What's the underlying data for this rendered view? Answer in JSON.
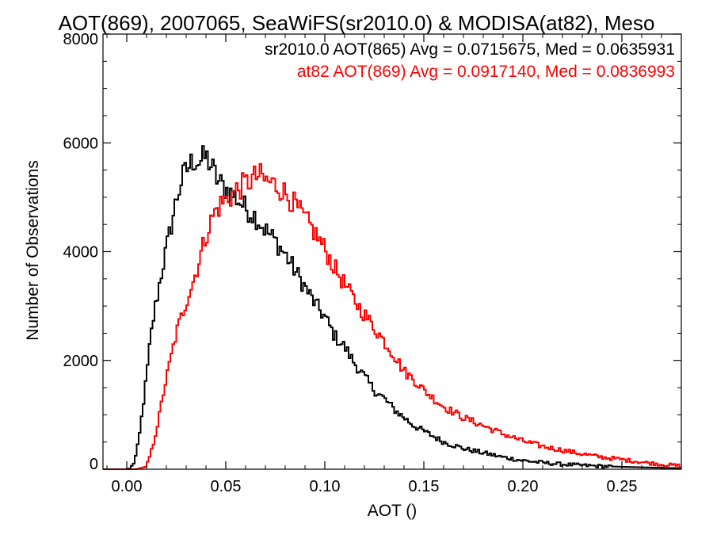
{
  "chart_data": {
    "type": "line",
    "title": "AOT(869), 2007065, SeaWiFS(sr2010.0) & MODISA(at82), Meso",
    "xlabel": "AOT ()",
    "ylabel": "Number of Observations",
    "xlim": [
      -0.012,
      0.28
    ],
    "ylim": [
      0,
      8000
    ],
    "xticks": [
      0.0,
      0.05,
      0.1,
      0.15,
      0.2,
      0.25
    ],
    "xtick_labels": [
      "0.00",
      "0.05",
      "0.10",
      "0.15",
      "0.20",
      "0.25"
    ],
    "yticks": [
      0,
      2000,
      4000,
      6000,
      8000
    ],
    "ytick_labels": [
      "0",
      "2000",
      "4000",
      "6000",
      "8000"
    ],
    "grid": false,
    "step": true,
    "series": [
      {
        "color": "#000000",
        "label": "sr2010.0 AOT(865) Avg = 0.0715675, Med = 0.0635931",
        "x": [
          -0.012,
          0.0,
          0.002,
          0.004,
          0.006,
          0.008,
          0.01,
          0.012,
          0.014,
          0.016,
          0.018,
          0.02,
          0.022,
          0.025,
          0.028,
          0.031,
          0.034,
          0.037,
          0.04,
          0.043,
          0.046,
          0.05,
          0.055,
          0.06,
          0.065,
          0.07,
          0.075,
          0.08,
          0.085,
          0.09,
          0.095,
          0.1,
          0.105,
          0.11,
          0.115,
          0.12,
          0.125,
          0.13,
          0.135,
          0.14,
          0.145,
          0.15,
          0.155,
          0.16,
          0.17,
          0.18,
          0.19,
          0.2,
          0.21,
          0.22,
          0.23,
          0.24,
          0.25,
          0.26,
          0.27,
          0.28
        ],
        "y": [
          0,
          0,
          20,
          150,
          500,
          1100,
          1700,
          2400,
          2900,
          3300,
          3700,
          4050,
          4400,
          4950,
          5350,
          5550,
          5700,
          5650,
          5750,
          5550,
          5300,
          5150,
          5000,
          4800,
          4650,
          4400,
          4200,
          3950,
          3650,
          3350,
          3050,
          2800,
          2450,
          2250,
          1950,
          1700,
          1450,
          1300,
          1100,
          950,
          800,
          700,
          600,
          500,
          380,
          300,
          220,
          160,
          120,
          90,
          70,
          55,
          45,
          35,
          25,
          20
        ]
      },
      {
        "color": "#ff0000",
        "label": "at82 AOT(869) Avg = 0.0917140, Med = 0.0836993",
        "x": [
          -0.012,
          0.0,
          0.005,
          0.01,
          0.013,
          0.016,
          0.019,
          0.022,
          0.025,
          0.028,
          0.031,
          0.034,
          0.037,
          0.04,
          0.044,
          0.048,
          0.052,
          0.056,
          0.06,
          0.064,
          0.067,
          0.07,
          0.074,
          0.078,
          0.082,
          0.086,
          0.09,
          0.095,
          0.1,
          0.105,
          0.11,
          0.115,
          0.12,
          0.125,
          0.13,
          0.135,
          0.14,
          0.145,
          0.15,
          0.155,
          0.16,
          0.17,
          0.18,
          0.19,
          0.2,
          0.21,
          0.22,
          0.23,
          0.24,
          0.25,
          0.26,
          0.27,
          0.28
        ],
        "y": [
          0,
          0,
          0,
          50,
          400,
          900,
          1500,
          2000,
          2500,
          2850,
          3200,
          3500,
          3900,
          4300,
          4700,
          4900,
          5000,
          5150,
          5250,
          5350,
          5400,
          5300,
          5250,
          5150,
          5000,
          4800,
          4600,
          4350,
          4050,
          3700,
          3400,
          3100,
          2850,
          2600,
          2350,
          2100,
          1800,
          1650,
          1450,
          1300,
          1150,
          950,
          800,
          650,
          520,
          420,
          350,
          280,
          220,
          180,
          130,
          90,
          60
        ]
      }
    ]
  }
}
